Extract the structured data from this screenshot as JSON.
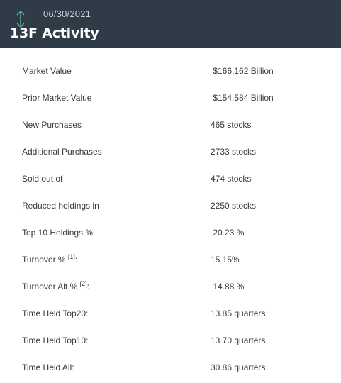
{
  "header": {
    "date": "06/30/2021",
    "title": "13F Activity",
    "icon": "vertical-arrows-icon"
  },
  "rows": [
    {
      "label": "Market Value",
      "value": " $166.162 Billion"
    },
    {
      "label": "Prior Market Value",
      "value": " $154.584 Billion"
    },
    {
      "label": "New Purchases",
      "value": "465 stocks"
    },
    {
      "label": "Additional Purchases",
      "value": "2733 stocks"
    },
    {
      "label": "Sold out of",
      "value": "474 stocks"
    },
    {
      "label": "Reduced holdings in",
      "value": "2250 stocks"
    },
    {
      "label": "Top 10 Holdings %",
      "value": " 20.23 %"
    },
    {
      "label": "Turnover %",
      "sup": "[1]",
      "suffix": ":",
      "value": "15.15%"
    },
    {
      "label": "Turnover Alt %",
      "sup": "[2]",
      "suffix": ":",
      "value": " 14.88 %"
    },
    {
      "label": "Time Held Top20:",
      "value": "13.85 quarters"
    },
    {
      "label": "Time Held Top10:",
      "value": "13.70 quarters"
    },
    {
      "label": "Time Held All:",
      "value": "30.86 quarters"
    }
  ]
}
